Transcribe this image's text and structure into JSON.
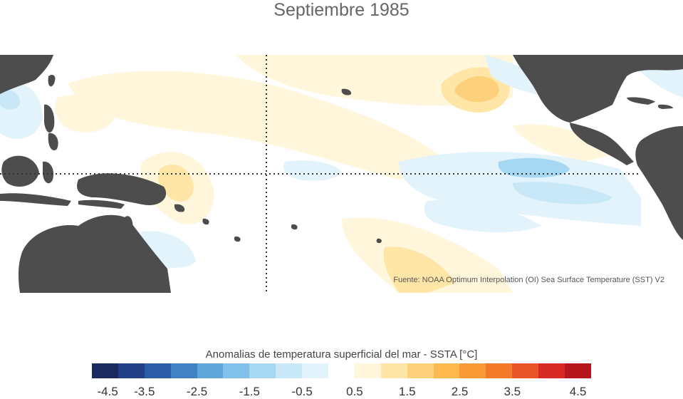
{
  "title": "Septiembre 1985",
  "source": "Fuente: NOAA Optimum Interpolation (OI) Sea Surface Temperature (SST) V2",
  "legend": {
    "title": "Anomalias de temperatura superficial del mar - SSTA  [°C]",
    "colors": [
      "#1b2a5e",
      "#233f88",
      "#2e5da8",
      "#4182c4",
      "#5ea5d9",
      "#80c0ea",
      "#a6d8f4",
      "#c8e8f8",
      "#e2f3fb",
      "#ffffff",
      "#fff6dc",
      "#ffe6a6",
      "#fdd17b",
      "#fdb84e",
      "#f99a35",
      "#f47a2a",
      "#ea5527",
      "#d72a25",
      "#b5161d"
    ],
    "ticks": [
      "-4.5",
      "-3.5",
      "-2.5",
      "-1.5",
      "-0.5",
      "0.5",
      "1.5",
      "2.5",
      "3.5",
      "4.5"
    ]
  },
  "map": {
    "land_color": "#4d4d4d",
    "reference_lines": [
      "equator",
      "date-line"
    ]
  }
}
